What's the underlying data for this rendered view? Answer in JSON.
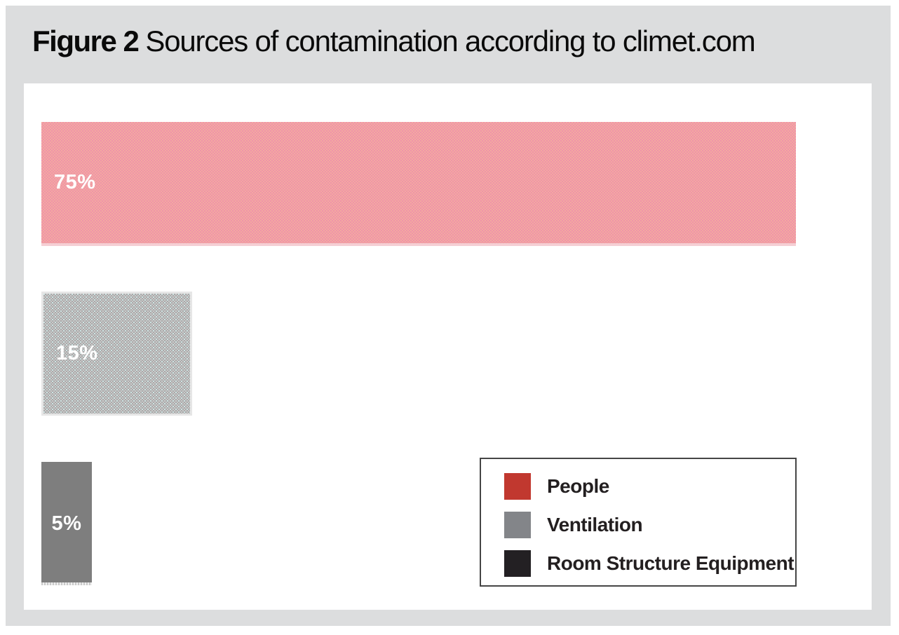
{
  "figure": {
    "label": "Figure 2",
    "title": "Sources of contamination according to climet.com"
  },
  "chart_data": {
    "type": "bar",
    "orientation": "horizontal",
    "title": "Sources of contamination according to climet.com",
    "categories": [
      "People",
      "Ventilation",
      "Room Structure Equipment"
    ],
    "values": [
      75,
      15,
      5
    ],
    "value_labels": [
      "75%",
      "15%",
      "5%"
    ],
    "xlim": [
      0,
      100
    ],
    "grid": false,
    "axes_shown": false,
    "legend_position": "bottom-right",
    "legend": [
      {
        "label": "People",
        "color": "#c1382f"
      },
      {
        "label": "Ventilation",
        "color": "#838589"
      },
      {
        "label": "Room Structure Equipment",
        "color": "#232023"
      }
    ]
  },
  "css_vars": {
    "--frame-bg": "#dcddde",
    "--title-color": "#0a0a0a",
    "--bar1-a": "#f4ab9e",
    "--bar1-b": "#ee92ab",
    "--bar1-edge": "#f5cfd4",
    "--bar2-a": "#c9c9c9",
    "--bar2-b": "#aaaaaa",
    "--bar2-accent": "#cfe3e3",
    "--bar2-edge": "#e6e6e6",
    "--bar3": "#7e7e7e",
    "--legend-border": "#454545",
    "--legend-text": "#231f20"
  }
}
